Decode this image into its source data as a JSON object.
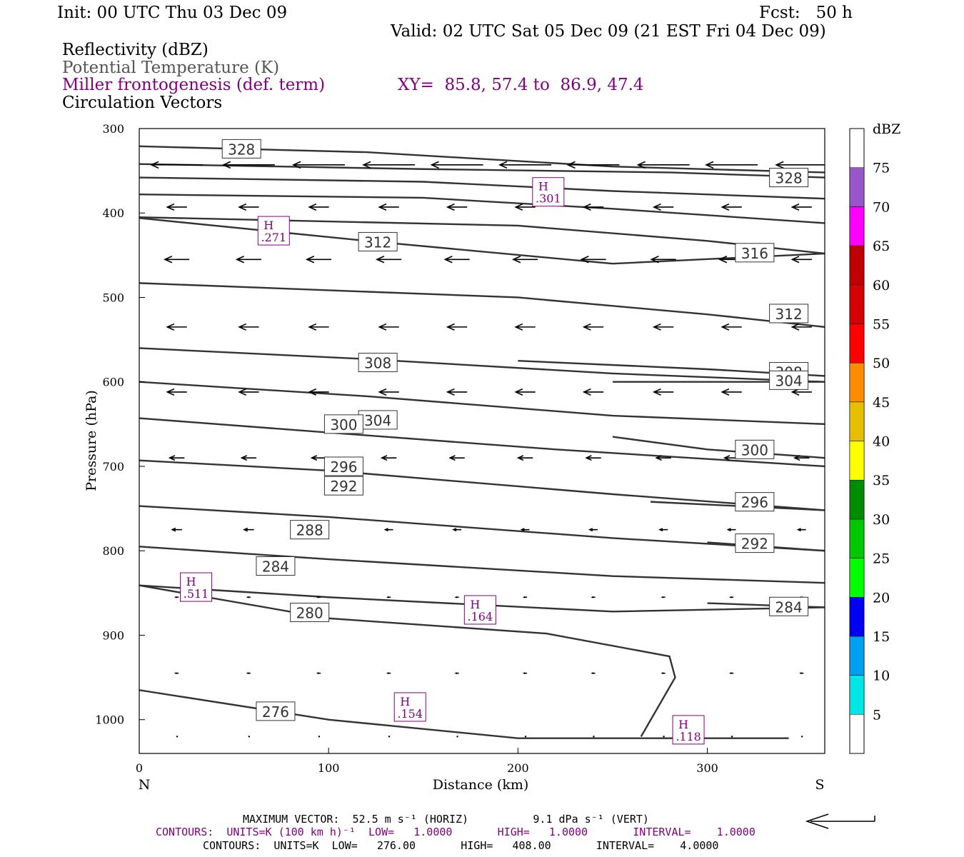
{
  "header": {
    "init": "Init: 00 UTC Thu 03 Dec 09",
    "fcst": "Fcst:   50 h",
    "valid": "Valid: 02 UTC Sat 05 Dec 09 (21 EST Fri 04 Dec 09)",
    "field1": "Reflectivity (dBZ)",
    "field2": "Potential Temperature (K)",
    "field3": "Miller frontogenesis (def. term)",
    "xy": "XY=  85.8, 57.4 to  86.9, 47.4",
    "field4": "Circulation Vectors"
  },
  "colors": {
    "purple": "#800080",
    "theta_gray": "#555555",
    "contour": "#333333"
  },
  "chart_data": {
    "type": "line",
    "xlabel": "Distance (km)",
    "ylabel": "Pressure (hPa)",
    "xlim": [
      0,
      362
    ],
    "ylim": [
      1040,
      300
    ],
    "x_ticks": [
      0,
      100,
      200,
      300
    ],
    "y_ticks": [
      300,
      400,
      500,
      600,
      700,
      800,
      900,
      1000
    ],
    "left_end_label": "N",
    "right_end_label": "S",
    "theta_isentropes": [
      {
        "name": "328",
        "points": [
          [
            0,
            321
          ],
          [
            120,
            328
          ],
          [
            250,
            345
          ],
          [
            362,
            352
          ]
        ],
        "label_at": [
          54,
          324
        ]
      },
      {
        "name": "328",
        "points": [
          [
            0,
            342
          ],
          [
            150,
            348
          ],
          [
            280,
            352
          ],
          [
            362,
            358
          ]
        ],
        "label_at": [
          343,
          358
        ]
      },
      {
        "name": "",
        "points": [
          [
            0,
            358
          ],
          [
            150,
            363
          ],
          [
            250,
            374
          ],
          [
            362,
            383
          ]
        ]
      },
      {
        "name": "",
        "points": [
          [
            0,
            378
          ],
          [
            150,
            382
          ],
          [
            250,
            395
          ],
          [
            362,
            412
          ]
        ]
      },
      {
        "name": "312",
        "points": [
          [
            0,
            406
          ],
          [
            120,
            433
          ],
          [
            250,
            460
          ],
          [
            362,
            448
          ]
        ],
        "label_at": [
          126,
          434
        ]
      },
      {
        "name": "316",
        "points": [
          [
            0,
            405
          ],
          [
            200,
            415
          ],
          [
            300,
            433
          ],
          [
            362,
            448
          ]
        ],
        "label_at": [
          325,
          447
        ]
      },
      {
        "name": "312",
        "points": [
          [
            0,
            483
          ],
          [
            200,
            500
          ],
          [
            300,
            520
          ],
          [
            362,
            535
          ]
        ],
        "label_at": [
          343,
          519
        ]
      },
      {
        "name": "308",
        "points": [
          [
            0,
            560
          ],
          [
            120,
            573
          ],
          [
            250,
            590
          ],
          [
            362,
            600
          ]
        ],
        "label_at": [
          126,
          577
        ]
      },
      {
        "name": "308",
        "points": [
          [
            200,
            575
          ],
          [
            300,
            585
          ],
          [
            362,
            593
          ]
        ],
        "label_at": [
          343,
          588
        ]
      },
      {
        "name": "304",
        "points": [
          [
            0,
            600
          ],
          [
            120,
            617
          ],
          [
            250,
            640
          ],
          [
            362,
            650
          ]
        ],
        "label_at": [
          126,
          645
        ]
      },
      {
        "name": "304",
        "points": [
          [
            250,
            600
          ],
          [
            362,
            600
          ]
        ],
        "label_at": [
          343,
          598
        ]
      },
      {
        "name": "300",
        "points": [
          [
            0,
            643
          ],
          [
            100,
            660
          ],
          [
            220,
            680
          ],
          [
            362,
            700
          ]
        ],
        "label_at": [
          108,
          650
        ]
      },
      {
        "name": "300",
        "points": [
          [
            250,
            665
          ],
          [
            300,
            680
          ],
          [
            362,
            690
          ]
        ],
        "label_at": [
          325,
          680
        ]
      },
      {
        "name": "296",
        "points": [
          [
            0,
            693
          ],
          [
            100,
            705
          ],
          [
            250,
            733
          ],
          [
            362,
            752
          ]
        ],
        "label_at": [
          108,
          700
        ]
      },
      {
        "name": "296",
        "points": [
          [
            270,
            742
          ],
          [
            362,
            752
          ]
        ],
        "label_at": [
          325,
          742
        ]
      },
      {
        "name": "292",
        "points": [
          [
            0,
            747
          ],
          [
            100,
            760
          ],
          [
            250,
            785
          ],
          [
            362,
            800
          ]
        ],
        "label_at": [
          108,
          723
        ]
      },
      {
        "name": "292",
        "points": [
          [
            300,
            790
          ],
          [
            362,
            800
          ]
        ],
        "label_at": [
          325,
          791
        ]
      },
      {
        "name": "288",
        "points": [
          [
            0,
            795
          ],
          [
            100,
            810
          ],
          [
            250,
            830
          ],
          [
            362,
            838
          ]
        ],
        "label_at": [
          90,
          775
        ]
      },
      {
        "name": "284",
        "points": [
          [
            0,
            841
          ],
          [
            100,
            855
          ],
          [
            250,
            872
          ],
          [
            362,
            867
          ]
        ],
        "label_at": [
          72,
          818
        ]
      },
      {
        "name": "284",
        "points": [
          [
            300,
            862
          ],
          [
            362,
            867
          ]
        ],
        "label_at": [
          343,
          866
        ]
      },
      {
        "name": "280",
        "points": [
          [
            0,
            841
          ],
          [
            100,
            880
          ],
          [
            215,
            898
          ],
          [
            280,
            925
          ],
          [
            283,
            950
          ],
          [
            265,
            1020
          ]
        ],
        "label_at": [
          90,
          873
        ]
      },
      {
        "name": "276",
        "points": [
          [
            0,
            965
          ],
          [
            100,
            1000
          ],
          [
            200,
            1022
          ],
          [
            343,
            1022
          ]
        ],
        "label_at": [
          72,
          990
        ]
      }
    ],
    "frontogenesis_maxima": [
      {
        "name": "H",
        "value": ".301",
        "x": 216,
        "p": 375
      },
      {
        "name": "H",
        "value": ".271",
        "x": 71,
        "p": 421
      },
      {
        "name": "H",
        "value": ".511",
        "x": 30,
        "p": 843
      },
      {
        "name": "H",
        "value": ".164",
        "x": 180,
        "p": 870
      },
      {
        "name": "H",
        "value": ".154",
        "x": 143,
        "p": 985
      },
      {
        "name": "H",
        "value": ".118",
        "x": 290,
        "p": 1012
      }
    ],
    "circulation_vectors": {
      "note": "horizontal component, m/s (negative = toward N)",
      "rows": [
        {
          "p": 343,
          "u": [
            -52.5,
            -52.5,
            -52.5,
            -52.5,
            -52.5,
            -52.5,
            -52.5,
            -52.5,
            -52.5,
            -52.5
          ]
        },
        {
          "p": 393,
          "u": [
            -20,
            -20,
            -20,
            -20,
            -20,
            -20,
            -20,
            -20,
            -20,
            -20
          ]
        },
        {
          "p": 455,
          "u": [
            -25,
            -25,
            -25,
            -25,
            -25,
            -25,
            -25,
            -25,
            -25,
            -20
          ]
        },
        {
          "p": 535,
          "u": [
            -20,
            -20,
            -20,
            -20,
            -20,
            -20,
            -20,
            -20,
            -20,
            -20
          ]
        },
        {
          "p": 612,
          "u": [
            -20,
            -20,
            -20,
            -20,
            -20,
            -20,
            -20,
            -20,
            -20,
            -20
          ]
        },
        {
          "p": 690,
          "u": [
            -15,
            -15,
            -15,
            -15,
            -15,
            -15,
            -15,
            -15,
            -15,
            -15
          ]
        },
        {
          "p": 775,
          "u": [
            -10,
            -10,
            -10,
            -8,
            -8,
            -8,
            -8,
            -8,
            -8,
            -8
          ]
        },
        {
          "p": 855,
          "u": [
            -3,
            -3,
            -3,
            -3,
            -3,
            -3,
            -3,
            -3,
            -3,
            -3
          ]
        },
        {
          "p": 945,
          "u": [
            -3,
            -3,
            -3,
            -3,
            -3,
            -3,
            -3,
            -3,
            -3,
            -3
          ]
        },
        {
          "p": 1020,
          "u": [
            -2,
            -2,
            -2,
            -2,
            -2,
            -2,
            -2,
            -2,
            -2,
            -2
          ]
        }
      ],
      "x_positions": [
        20,
        58,
        95,
        132,
        168,
        204,
        240,
        277,
        313,
        350
      ]
    },
    "colorbar": {
      "title": "dBZ",
      "ticks": [
        "5",
        "10",
        "15",
        "20",
        "25",
        "30",
        "35",
        "40",
        "45",
        "50",
        "55",
        "60",
        "65",
        "70",
        "75"
      ],
      "colors": [
        "#00e6e6",
        "#00a0f0",
        "#0000f0",
        "#00ff00",
        "#00c800",
        "#008c00",
        "#ffff00",
        "#e6bf00",
        "#ff8c00",
        "#ff0000",
        "#d60000",
        "#c00000",
        "#ff00ff",
        "#9955c9"
      ]
    }
  },
  "footer": {
    "max_vector": "MAXIMUM VECTOR:  52.5 m s⁻¹ (HORIZ)          9.1 dPa s⁻¹ (VERT)",
    "contours1": "CONTOURS:  UNITS=K (100 km h)⁻¹  LOW=   1.0000       HIGH=   1.0000       INTERVAL=    1.0000",
    "contours2": "CONTOURS:  UNITS=K  LOW=   276.00       HIGH=   408.00       INTERVAL=    4.0000"
  }
}
